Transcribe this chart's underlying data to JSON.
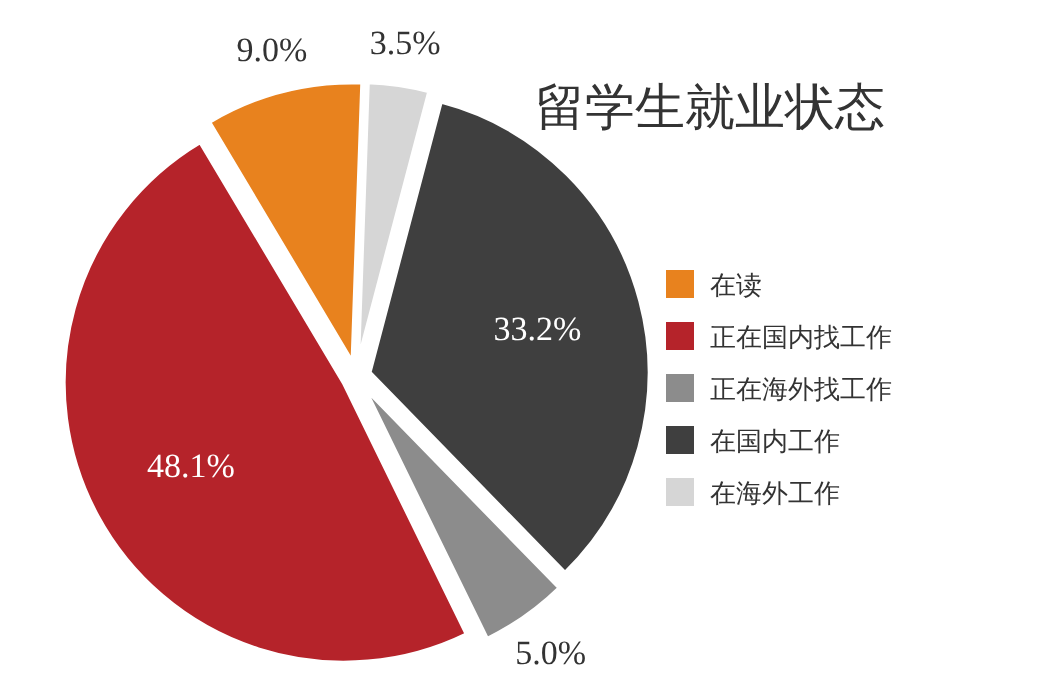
{
  "chart_data": {
    "type": "pie",
    "title": "留学生就业状态",
    "categories": [
      "在读",
      "正在国内找工作",
      "正在海外找工作",
      "在国内工作",
      "在海外工作"
    ],
    "values": [
      9.0,
      48.1,
      5.0,
      33.2,
      3.5
    ],
    "value_labels": [
      "9.0%",
      "48.1%",
      "5.0%",
      "33.2%",
      "3.5%"
    ],
    "colors": [
      "#e8821e",
      "#b5232a",
      "#8c8c8c",
      "#3f3f3f",
      "#d6d6d6"
    ],
    "legend": "right"
  }
}
